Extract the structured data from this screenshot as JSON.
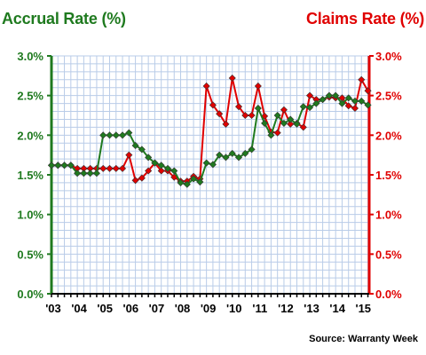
{
  "header": {
    "left_title": "Accrual Rate (%)",
    "right_title": "Claims Rate (%)"
  },
  "footer": {
    "source": "Source: Warranty Week"
  },
  "colors": {
    "accrual": "#1f7a1f",
    "claims": "#e00000",
    "grid": "#b9cce8",
    "background": "#ffffff"
  },
  "chart_data": {
    "type": "line",
    "title": "",
    "xlabel": "",
    "ylabel_left": "Accrual Rate (%)",
    "ylabel_right": "Claims Rate (%)",
    "ylim_left": [
      0,
      3.0
    ],
    "ylim_right": [
      0,
      3.0
    ],
    "xlim": [
      2003,
      2015.3
    ],
    "grid": true,
    "x_tick_labels": [
      "'03",
      "'04",
      "'05",
      "'06",
      "'07",
      "'08",
      "'09",
      "'10",
      "'11",
      "'12",
      "'13",
      "'14",
      "'15"
    ],
    "x_tick_values": [
      2003,
      2004,
      2005,
      2006,
      2007,
      2008,
      2009,
      2010,
      2011,
      2012,
      2013,
      2014,
      2015
    ],
    "y_tick_labels_left": [
      "0.0%",
      "0.5%",
      "1.0%",
      "1.5%",
      "2.0%",
      "2.5%",
      "3.0%"
    ],
    "y_tick_labels_right": [
      "0.0%",
      "0.5%",
      "1.0%",
      "1.5%",
      "2.0%",
      "2.5%",
      "3.0%"
    ],
    "y_tick_values": [
      0,
      0.5,
      1.0,
      1.5,
      2.0,
      2.5,
      3.0
    ],
    "series": [
      {
        "name": "Accrual Rate (%)",
        "axis": "left",
        "color": "#1f7a1f",
        "points": [
          [
            2003.0,
            1.62
          ],
          [
            2003.25,
            1.62
          ],
          [
            2003.5,
            1.62
          ],
          [
            2003.75,
            1.62
          ],
          [
            2004.0,
            1.52
          ],
          [
            2004.25,
            1.52
          ],
          [
            2004.5,
            1.52
          ],
          [
            2004.75,
            1.52
          ],
          [
            2005.0,
            2.0
          ],
          [
            2005.25,
            2.0
          ],
          [
            2005.5,
            2.0
          ],
          [
            2005.75,
            2.0
          ],
          [
            2006.0,
            2.03
          ],
          [
            2006.25,
            1.87
          ],
          [
            2006.5,
            1.82
          ],
          [
            2006.75,
            1.72
          ],
          [
            2007.0,
            1.65
          ],
          [
            2007.25,
            1.62
          ],
          [
            2007.5,
            1.58
          ],
          [
            2007.75,
            1.55
          ],
          [
            2008.0,
            1.4
          ],
          [
            2008.25,
            1.38
          ],
          [
            2008.5,
            1.45
          ],
          [
            2008.75,
            1.41
          ],
          [
            2009.0,
            1.65
          ],
          [
            2009.25,
            1.63
          ],
          [
            2009.5,
            1.75
          ],
          [
            2009.75,
            1.72
          ],
          [
            2010.0,
            1.77
          ],
          [
            2010.25,
            1.72
          ],
          [
            2010.5,
            1.77
          ],
          [
            2010.75,
            1.82
          ],
          [
            2011.0,
            2.34
          ],
          [
            2011.25,
            2.15
          ],
          [
            2011.5,
            2.0
          ],
          [
            2011.75,
            2.25
          ],
          [
            2012.0,
            2.15
          ],
          [
            2012.25,
            2.2
          ],
          [
            2012.5,
            2.14
          ],
          [
            2012.75,
            2.36
          ],
          [
            2013.0,
            2.35
          ],
          [
            2013.25,
            2.4
          ],
          [
            2013.5,
            2.45
          ],
          [
            2013.75,
            2.5
          ],
          [
            2014.0,
            2.5
          ],
          [
            2014.25,
            2.4
          ],
          [
            2014.5,
            2.47
          ],
          [
            2014.75,
            2.43
          ],
          [
            2015.0,
            2.43
          ],
          [
            2015.25,
            2.38
          ]
        ]
      },
      {
        "name": "Claims Rate (%)",
        "axis": "right",
        "color": "#e00000",
        "points": [
          [
            2003.0,
            1.62
          ],
          [
            2003.25,
            1.62
          ],
          [
            2003.5,
            1.62
          ],
          [
            2003.75,
            1.62
          ],
          [
            2004.0,
            1.58
          ],
          [
            2004.25,
            1.58
          ],
          [
            2004.5,
            1.58
          ],
          [
            2004.75,
            1.58
          ],
          [
            2005.0,
            1.58
          ],
          [
            2005.25,
            1.58
          ],
          [
            2005.5,
            1.58
          ],
          [
            2005.75,
            1.58
          ],
          [
            2006.0,
            1.75
          ],
          [
            2006.25,
            1.43
          ],
          [
            2006.5,
            1.46
          ],
          [
            2006.75,
            1.55
          ],
          [
            2007.0,
            1.65
          ],
          [
            2007.25,
            1.55
          ],
          [
            2007.5,
            1.55
          ],
          [
            2007.75,
            1.47
          ],
          [
            2008.0,
            1.42
          ],
          [
            2008.25,
            1.42
          ],
          [
            2008.5,
            1.48
          ],
          [
            2008.75,
            1.45
          ],
          [
            2009.0,
            2.62
          ],
          [
            2009.25,
            2.38
          ],
          [
            2009.5,
            2.27
          ],
          [
            2009.75,
            2.14
          ],
          [
            2010.0,
            2.72
          ],
          [
            2010.25,
            2.36
          ],
          [
            2010.5,
            2.25
          ],
          [
            2010.75,
            2.25
          ],
          [
            2011.0,
            2.62
          ],
          [
            2011.25,
            2.24
          ],
          [
            2011.5,
            2.04
          ],
          [
            2011.75,
            2.03
          ],
          [
            2012.0,
            2.32
          ],
          [
            2012.25,
            2.14
          ],
          [
            2012.5,
            2.15
          ],
          [
            2012.75,
            2.1
          ],
          [
            2013.0,
            2.5
          ],
          [
            2013.25,
            2.45
          ],
          [
            2013.5,
            2.45
          ],
          [
            2013.75,
            2.48
          ],
          [
            2014.0,
            2.47
          ],
          [
            2014.25,
            2.47
          ],
          [
            2014.5,
            2.37
          ],
          [
            2014.75,
            2.34
          ],
          [
            2015.0,
            2.7
          ],
          [
            2015.25,
            2.56
          ]
        ]
      }
    ]
  }
}
